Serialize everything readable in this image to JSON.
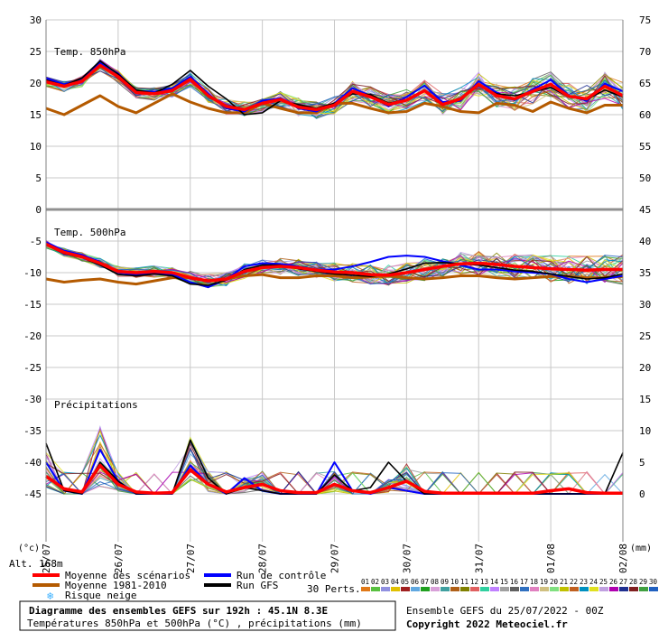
{
  "chart_data": {
    "type": "line",
    "title": "Diagramme des ensembles GEFS sur 192h : 45.1N 8.3E",
    "subtitle": "Températures 850hPa et 500hPa (°C) , précipitations (mm)",
    "panels": [
      {
        "label": "Temp. 850hPa",
        "unit": "°C"
      },
      {
        "label": "Temp. 500hPa",
        "unit": "°C"
      },
      {
        "label": "Précipitations",
        "unit": "mm"
      }
    ],
    "x_tick_labels": [
      "25/07",
      "26/07",
      "27/07",
      "28/07",
      "29/07",
      "30/07",
      "31/07",
      "01/08",
      "02/08"
    ],
    "x_range_hours": [
      0,
      192
    ],
    "left_axis_ticks": [
      30,
      25,
      20,
      15,
      10,
      5,
      0,
      -5,
      -10,
      -15,
      -20,
      -25,
      -30,
      -35,
      -40,
      -45
    ],
    "right_axis_ticks": [
      75,
      70,
      65,
      60,
      55,
      50,
      45,
      40,
      35,
      30,
      25,
      20,
      15,
      10,
      5,
      0
    ],
    "left_axis_unit": "(°c)",
    "right_axis_unit": "(mm)",
    "altitude_label": "Alt. 168m",
    "grid": true,
    "series_850": [
      {
        "name": "Moyenne des scénarios",
        "x": [
          0,
          6,
          12,
          18,
          24,
          30,
          36,
          42,
          48,
          54,
          60,
          66,
          72,
          78,
          84,
          90,
          96,
          102,
          108,
          114,
          120,
          126,
          132,
          138,
          144,
          150,
          156,
          162,
          168,
          174,
          180,
          186,
          192
        ],
        "y": [
          20.2,
          19.5,
          20.3,
          22.8,
          21.0,
          18.5,
          18.3,
          18.8,
          20.6,
          18.0,
          16.3,
          15.8,
          16.8,
          17.4,
          16.2,
          15.8,
          16.5,
          18.7,
          17.8,
          16.6,
          17.3,
          18.8,
          16.6,
          17.5,
          19.8,
          18.0,
          17.5,
          18.7,
          19.8,
          17.9,
          17.5,
          19.5,
          18.0
        ]
      },
      {
        "name": "Moyenne 1981-2010",
        "x": [
          0,
          6,
          12,
          18,
          24,
          30,
          36,
          42,
          48,
          54,
          60,
          66,
          72,
          78,
          84,
          90,
          96,
          102,
          108,
          114,
          120,
          126,
          132,
          138,
          144,
          150,
          156,
          162,
          168,
          174,
          180,
          186,
          192
        ],
        "y": [
          16.0,
          15.0,
          16.5,
          18.0,
          16.3,
          15.3,
          16.8,
          18.3,
          17.0,
          16.0,
          15.3,
          15.3,
          16.8,
          16.0,
          15.3,
          15.3,
          16.8,
          16.8,
          16.0,
          15.3,
          15.5,
          16.8,
          16.3,
          15.5,
          15.3,
          16.8,
          16.5,
          15.5,
          17.0,
          16.0,
          15.3,
          16.5,
          16.5
        ]
      },
      {
        "name": "Run de contrôle",
        "x": [
          0,
          6,
          12,
          18,
          24,
          30,
          36,
          42,
          48,
          54,
          60,
          66,
          72,
          78,
          84,
          90,
          96,
          102,
          108,
          114,
          120,
          126,
          132,
          138,
          144,
          150,
          156,
          162,
          168,
          174,
          180,
          186,
          192
        ],
        "y": [
          20.8,
          19.8,
          20.5,
          23.2,
          21.5,
          18.8,
          18.6,
          19.2,
          21.0,
          18.3,
          16.0,
          15.5,
          17.2,
          17.6,
          16.0,
          15.5,
          16.8,
          19.2,
          18.0,
          16.3,
          17.8,
          19.6,
          17.0,
          17.2,
          20.3,
          18.5,
          17.3,
          19.0,
          20.5,
          18.0,
          17.2,
          19.9,
          18.7
        ]
      },
      {
        "name": "Run GFS",
        "x": [
          0,
          6,
          12,
          18,
          24,
          30,
          36,
          42,
          48,
          54,
          60,
          66,
          72,
          78,
          84,
          90,
          96,
          102,
          108,
          114,
          120,
          126,
          132,
          138,
          144,
          150,
          156,
          162,
          168,
          174,
          180,
          186,
          192
        ],
        "y": [
          20.5,
          19.6,
          20.8,
          23.5,
          21.4,
          18.9,
          18.4,
          19.8,
          22.0,
          19.5,
          17.5,
          15.0,
          15.3,
          17.2,
          16.6,
          16.0,
          16.8,
          18.3,
          18.2,
          16.8,
          17.4,
          18.8,
          16.5,
          17.6,
          19.6,
          18.3,
          18.0,
          18.6,
          19.3,
          17.8,
          17.4,
          18.9,
          17.8
        ]
      }
    ],
    "series_500": [
      {
        "name": "Moyenne des scénarios",
        "x": [
          0,
          6,
          12,
          18,
          24,
          30,
          36,
          42,
          48,
          54,
          60,
          66,
          72,
          78,
          84,
          90,
          96,
          102,
          108,
          114,
          120,
          126,
          132,
          138,
          144,
          150,
          156,
          162,
          168,
          174,
          180,
          186,
          192
        ],
        "y": [
          -5.5,
          -6.8,
          -7.5,
          -8.5,
          -9.8,
          -10.0,
          -9.8,
          -10.0,
          -10.8,
          -11.3,
          -11.0,
          -9.8,
          -9.2,
          -9.0,
          -9.2,
          -9.6,
          -9.9,
          -10.0,
          -10.3,
          -10.4,
          -10.0,
          -9.5,
          -9.0,
          -8.6,
          -8.5,
          -8.7,
          -9.0,
          -9.2,
          -9.4,
          -9.5,
          -9.6,
          -9.5,
          -9.5
        ]
      },
      {
        "name": "Moyenne 1981-2010",
        "x": [
          0,
          6,
          12,
          18,
          24,
          30,
          36,
          42,
          48,
          54,
          60,
          66,
          72,
          78,
          84,
          90,
          96,
          102,
          108,
          114,
          120,
          126,
          132,
          138,
          144,
          150,
          156,
          162,
          168,
          174,
          180,
          186,
          192
        ],
        "y": [
          -11.0,
          -11.5,
          -11.2,
          -11.0,
          -11.5,
          -11.8,
          -11.3,
          -10.8,
          -10.8,
          -11.3,
          -11.0,
          -10.5,
          -10.3,
          -10.8,
          -10.8,
          -10.5,
          -10.5,
          -10.8,
          -10.7,
          -10.5,
          -10.8,
          -11.0,
          -10.8,
          -10.5,
          -10.5,
          -10.8,
          -11.0,
          -10.8,
          -10.6,
          -10.6,
          -10.8,
          -10.8,
          -10.6
        ]
      },
      {
        "name": "Run de contrôle",
        "x": [
          0,
          6,
          12,
          18,
          24,
          30,
          36,
          42,
          48,
          54,
          60,
          66,
          72,
          78,
          84,
          90,
          96,
          102,
          108,
          114,
          120,
          126,
          132,
          138,
          144,
          150,
          156,
          162,
          168,
          174,
          180,
          186,
          192
        ],
        "y": [
          -5.2,
          -6.5,
          -7.2,
          -8.3,
          -10.0,
          -10.3,
          -10.0,
          -10.3,
          -11.5,
          -12.3,
          -11.0,
          -9.0,
          -8.5,
          -8.6,
          -9.0,
          -9.5,
          -9.5,
          -9.0,
          -8.3,
          -7.5,
          -7.3,
          -7.5,
          -8.2,
          -8.8,
          -9.5,
          -9.5,
          -9.8,
          -10.0,
          -10.2,
          -11.0,
          -11.5,
          -11.0,
          -10.5
        ]
      },
      {
        "name": "Run GFS",
        "x": [
          0,
          6,
          12,
          18,
          24,
          30,
          36,
          42,
          48,
          54,
          60,
          66,
          72,
          78,
          84,
          90,
          96,
          102,
          108,
          114,
          120,
          126,
          132,
          138,
          144,
          150,
          156,
          162,
          168,
          174,
          180,
          186,
          192
        ],
        "y": [
          -5.6,
          -7.0,
          -7.6,
          -8.8,
          -10.3,
          -10.5,
          -10.2,
          -10.5,
          -11.8,
          -12.0,
          -11.2,
          -9.5,
          -8.8,
          -8.8,
          -9.4,
          -9.8,
          -10.2,
          -10.4,
          -10.6,
          -10.2,
          -9.4,
          -8.5,
          -8.4,
          -8.6,
          -8.8,
          -9.2,
          -9.6,
          -9.8,
          -10.2,
          -10.6,
          -11.0,
          -10.8,
          -10.2
        ]
      }
    ],
    "series_precip": [
      {
        "name": "Moyenne des scénarios",
        "x": [
          0,
          6,
          12,
          18,
          24,
          30,
          36,
          42,
          48,
          54,
          60,
          66,
          72,
          78,
          84,
          90,
          96,
          102,
          108,
          114,
          120,
          126,
          132,
          138,
          144,
          150,
          156,
          162,
          168,
          174,
          180,
          186,
          192
        ],
        "y": [
          2.8,
          0.8,
          0.3,
          4.5,
          1.5,
          0.3,
          0.1,
          0.2,
          3.8,
          1.5,
          0.3,
          1.0,
          1.5,
          0.5,
          0.2,
          0.2,
          1.5,
          0.5,
          0.2,
          1.0,
          2.0,
          0.4,
          0.1,
          0.1,
          0.1,
          0.1,
          0.1,
          0.1,
          0.5,
          0.8,
          0.2,
          0.1,
          0.1
        ]
      },
      {
        "name": "Run de contrôle",
        "x": [
          0,
          6,
          12,
          18,
          24,
          30,
          36,
          42,
          48,
          54,
          60,
          66,
          72,
          78,
          84,
          90,
          96,
          102,
          108,
          114,
          120,
          126,
          132,
          138,
          144,
          150,
          156,
          162,
          168,
          174,
          180,
          186,
          192
        ],
        "y": [
          5.0,
          0.5,
          0.0,
          7.0,
          2.0,
          0.0,
          0.0,
          0.0,
          4.5,
          1.5,
          0.0,
          2.5,
          0.5,
          0.0,
          0.0,
          0.0,
          5.0,
          0.5,
          0.0,
          1.0,
          0.5,
          0.0,
          0.0,
          0.0,
          0.0,
          0.0,
          0.0,
          0.0,
          0.0,
          0.0,
          0.0,
          0.0,
          0.0
        ]
      },
      {
        "name": "Run GFS",
        "x": [
          0,
          6,
          12,
          18,
          24,
          30,
          36,
          42,
          48,
          54,
          60,
          66,
          72,
          78,
          84,
          90,
          96,
          102,
          108,
          114,
          120,
          126,
          132,
          138,
          144,
          150,
          156,
          162,
          168,
          174,
          180,
          186,
          192
        ],
        "y": [
          8.0,
          0.5,
          0.0,
          5.0,
          2.0,
          0.0,
          0.0,
          0.0,
          8.5,
          2.5,
          0.0,
          1.0,
          0.5,
          0.0,
          0.0,
          0.0,
          3.0,
          0.5,
          1.0,
          5.0,
          2.0,
          0.0,
          0.0,
          0.0,
          0.0,
          0.0,
          0.0,
          0.0,
          0.0,
          0.0,
          0.0,
          0.0,
          6.5
        ]
      }
    ]
  },
  "legend": {
    "mean": "Moyenne des scénarios",
    "clim": "Moyenne 1981-2010",
    "snow": "Risque neige",
    "control": "Run de contrôle",
    "gfs": "Run GFS",
    "perts_label": "30 Perts.",
    "perts_numbers": [
      "01",
      "02",
      "03",
      "04",
      "05",
      "06",
      "07",
      "08",
      "09",
      "10",
      "11",
      "12",
      "13",
      "14",
      "15",
      "16",
      "17",
      "18",
      "19",
      "20",
      "21",
      "22",
      "23",
      "24",
      "25",
      "26",
      "27",
      "28",
      "29",
      "30"
    ],
    "perts_colors": [
      "#e07818",
      "#58c040",
      "#9090e0",
      "#e0c000",
      "#a02020",
      "#60a8e0",
      "#20a020",
      "#d8a0d8",
      "#40a0a0",
      "#b06018",
      "#808000",
      "#e06060",
      "#30d0a0",
      "#c080ff",
      "#a0a0a0",
      "#606060",
      "#3070c0",
      "#e080c0",
      "#d0c080",
      "#80e080",
      "#c0c000",
      "#c06020",
      "#0090c0",
      "#e0e020",
      "#c0a0e0",
      "#b000b0",
      "#203090",
      "#802020",
      "#40a040",
      "#2060c0"
    ]
  },
  "colors": {
    "mean": "#ff0000",
    "clim": "#b45a00",
    "control": "#0000ff",
    "gfs": "#000000",
    "snow": "#3ab0ff"
  },
  "footer": {
    "title": "Diagramme des ensembles GEFS sur 192h : 45.1N 8.3E",
    "subtitle": "Températures 850hPa et 500hPa (°C) , précipitations (mm)",
    "run_info": "Ensemble GEFS du 25/07/2022 - 00Z",
    "copyright": "Copyright 2022 Meteociel.fr"
  }
}
